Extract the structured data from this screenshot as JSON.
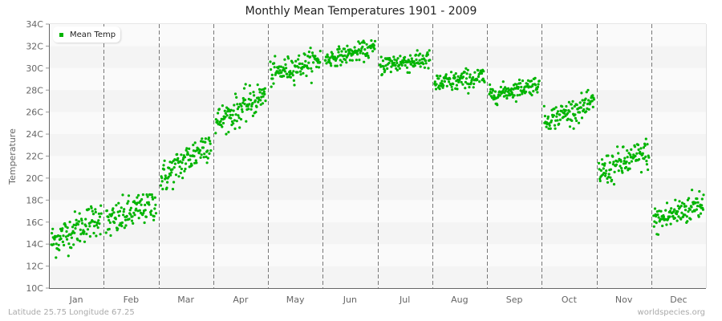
{
  "header": {
    "title": "Monthly Mean Temperatures 1901 - 2009"
  },
  "footer": {
    "location": "Latitude 25.75 Longitude 67.25",
    "source": "worldspecies.org"
  },
  "legend": {
    "label": "Mean Temp",
    "color": "#00b400"
  },
  "colors": {
    "point": "#00b400",
    "band_dark": "#f4f4f4",
    "band_light": "#fafafa",
    "axis": "#666666",
    "separator": "#777777"
  },
  "chart_data": {
    "type": "scatter",
    "title": "Monthly Mean Temperatures 1901 - 2009",
    "xlabel": "",
    "ylabel": "Temperature",
    "ylim": [
      10,
      34
    ],
    "yticks": [
      "10C",
      "12C",
      "14C",
      "16C",
      "18C",
      "20C",
      "22C",
      "24C",
      "26C",
      "28C",
      "30C",
      "32C",
      "34C"
    ],
    "categories": [
      "Jan",
      "Feb",
      "Mar",
      "Apr",
      "May",
      "Jun",
      "Jul",
      "Aug",
      "Sep",
      "Oct",
      "Nov",
      "Dec"
    ],
    "legend_position": "top-left",
    "grid": "horizontal alternating bands; dashed vertical month separators",
    "years": [
      1901,
      2009
    ],
    "series": [
      {
        "name": "Mean Temp",
        "points_per_month": 109,
        "monthly_summary": [
          {
            "month": "Jan",
            "start": 14.2,
            "end": 16.6,
            "spread": 1.0,
            "min": 11.6,
            "max": 17.5
          },
          {
            "month": "Feb",
            "start": 15.8,
            "end": 17.8,
            "spread": 1.0,
            "min": 13.6,
            "max": 18.5
          },
          {
            "month": "Mar",
            "start": 19.8,
            "end": 23.4,
            "spread": 1.0,
            "min": 19.0,
            "max": 24.5
          },
          {
            "month": "Apr",
            "start": 25.0,
            "end": 27.6,
            "spread": 0.9,
            "min": 24.0,
            "max": 28.8
          },
          {
            "month": "May",
            "start": 29.4,
            "end": 30.8,
            "spread": 0.7,
            "min": 28.3,
            "max": 32.0
          },
          {
            "month": "Jun",
            "start": 30.8,
            "end": 31.8,
            "spread": 0.5,
            "min": 30.2,
            "max": 32.6
          },
          {
            "month": "Jul",
            "start": 30.3,
            "end": 30.8,
            "spread": 0.6,
            "min": 28.5,
            "max": 31.6
          },
          {
            "month": "Aug",
            "start": 28.5,
            "end": 29.2,
            "spread": 0.6,
            "min": 27.5,
            "max": 30.3
          },
          {
            "month": "Sep",
            "start": 27.5,
            "end": 28.6,
            "spread": 0.5,
            "min": 26.3,
            "max": 29.3
          },
          {
            "month": "Oct",
            "start": 25.2,
            "end": 26.8,
            "spread": 0.7,
            "min": 24.5,
            "max": 28.0
          },
          {
            "month": "Nov",
            "start": 20.5,
            "end": 22.3,
            "spread": 0.9,
            "min": 18.3,
            "max": 23.6
          },
          {
            "month": "Dec",
            "start": 16.0,
            "end": 17.8,
            "spread": 0.9,
            "min": 13.8,
            "max": 20.0
          }
        ]
      }
    ]
  }
}
